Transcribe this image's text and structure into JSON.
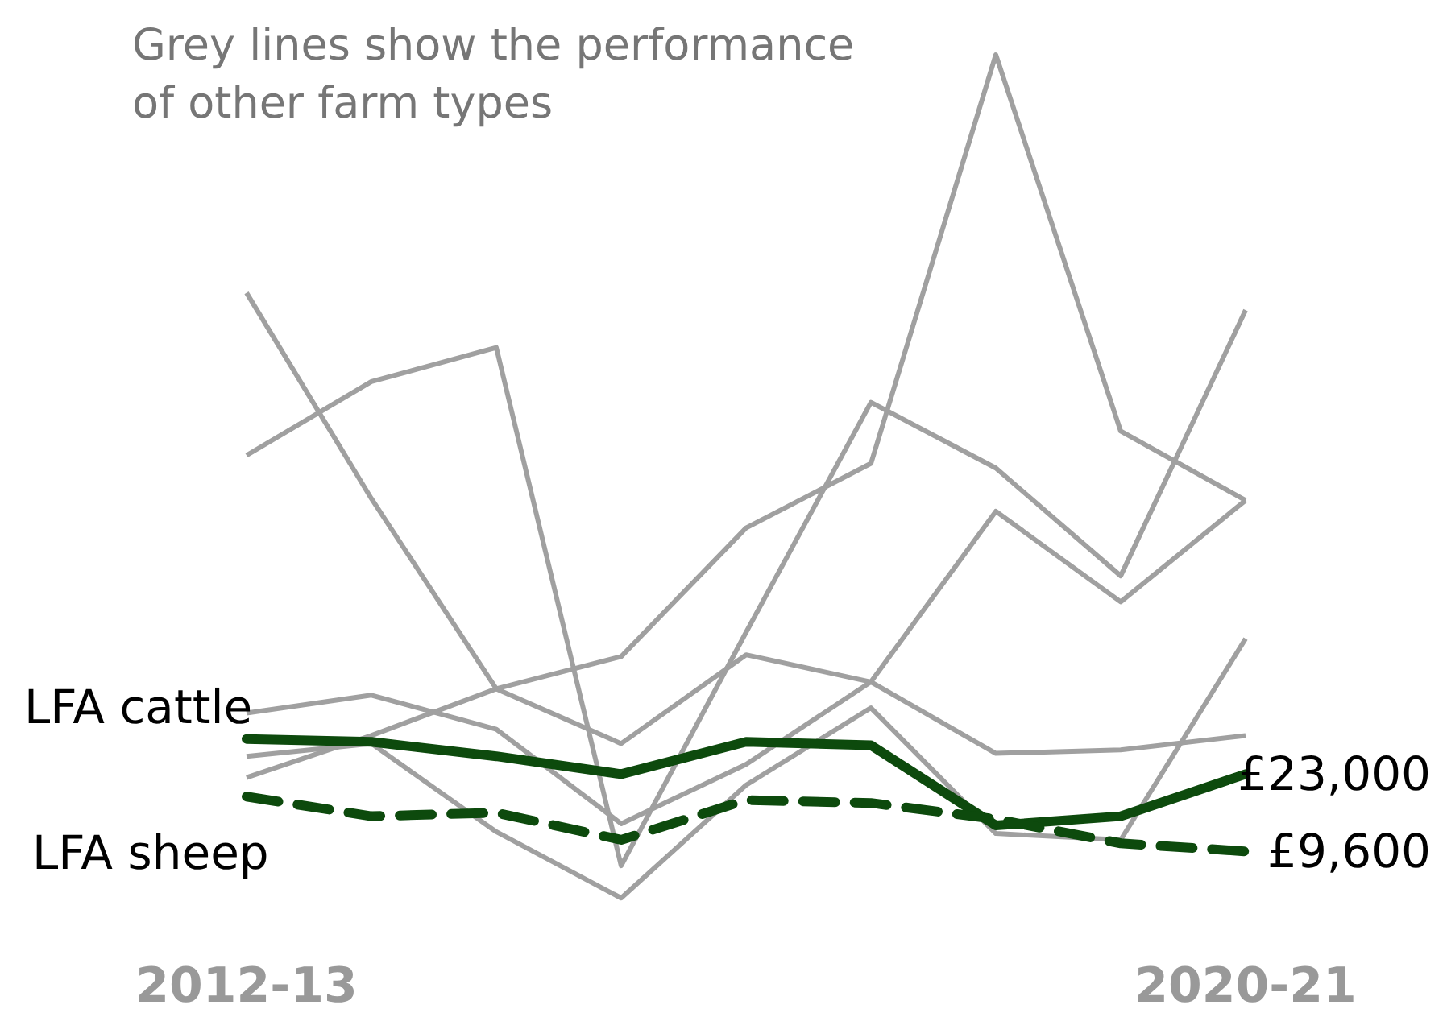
{
  "chart_data": {
    "type": "line",
    "annotations": [
      "Grey lines show the performance of other farm types"
    ],
    "categories": [
      "2012-13",
      null,
      null,
      null,
      null,
      null,
      null,
      null,
      "2020-21"
    ],
    "tick_labels": "x",
    "legend": false,
    "marker": "none",
    "series": [
      {
        "color": "#a0a0a0",
        "line_style": "solid",
        "values": [
          22400,
          29700,
          37800,
          43400,
          65700,
          76900,
          147800,
          82500,
          70500
        ]
      },
      {
        "color": "#a0a0a0",
        "line_style": "solid",
        "values": [
          78300,
          91100,
          97000,
          7100,
          47600,
          87500,
          76100,
          57400,
          103500
        ]
      },
      {
        "color": "#a0a0a0",
        "line_style": "solid",
        "values": [
          106500,
          70800,
          37800,
          28300,
          43700,
          39000,
          26600,
          27200,
          29700
        ]
      },
      {
        "color": "#a0a0a0",
        "line_style": "solid",
        "values": [
          33600,
          36700,
          30800,
          14400,
          24700,
          39000,
          68600,
          52900,
          70500
        ]
      },
      {
        "color": "#a0a0a0",
        "line_style": "solid",
        "values": [
          26100,
          28300,
          13000,
          1500,
          21100,
          34500,
          12700,
          11600,
          46500
        ]
      },
      {
        "name": "LFA cattle",
        "color": "#0d4a0d",
        "line_style": "solid",
        "values": [
          29100,
          28600,
          26100,
          23000,
          28600,
          28000,
          14100,
          15700,
          23000
        ],
        "value_labels": [
          null,
          null,
          null,
          null,
          null,
          null,
          null,
          null,
          "£23,000"
        ]
      },
      {
        "name": "LFA sheep",
        "color": "#0d4a0d",
        "line_style": "dashed",
        "values": [
          19100,
          15700,
          16300,
          11600,
          18500,
          18000,
          15200,
          11000,
          9600
        ],
        "value_labels": [
          null,
          null,
          null,
          null,
          null,
          null,
          null,
          null,
          "£9,600"
        ]
      }
    ]
  }
}
